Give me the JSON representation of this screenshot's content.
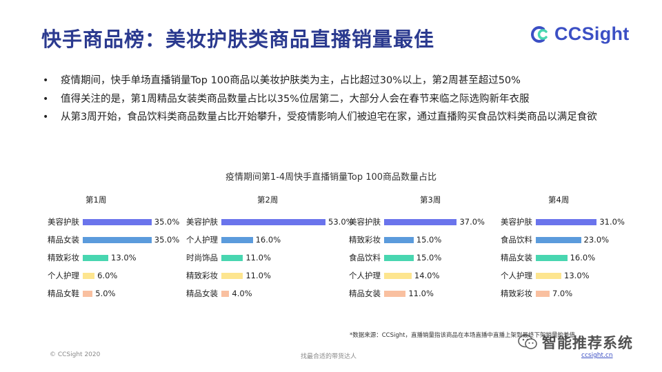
{
  "title": "快手商品榜：美妆护肤类商品直播销量最佳",
  "logo": {
    "text": "CCSight"
  },
  "bullets": [
    "疫情期间，快手单场直播销量Top 100商品以美妆护肤类为主，占比超过30%以上，第2周甚至超过50%",
    "值得关注的是，第1周精品女装类商品数量占比以35%位居第二，大部分人会在春节来临之际选购新年衣服",
    "从第3周开始，食品饮料类商品数量占比开始攀升，受疫情影响人们被迫宅在家，通过直播购买食品饮料类商品以满足食欲"
  ],
  "bullet_symbol": "•",
  "chart_data": {
    "type": "bar",
    "title": "疫情期间第1-4周快手直播销量Top 100商品数量占比",
    "orientation": "horizontal",
    "rank_colors": [
      "#6a74ec",
      "#5b9bdc",
      "#48d6b0",
      "#fde58f",
      "#f9c0a0"
    ],
    "panels": [
      {
        "name": "第1周",
        "categories": [
          "美容护肤",
          "精品女装",
          "精致彩妆",
          "个人护理",
          "精品女鞋"
        ],
        "values": [
          35.0,
          35.0,
          13.0,
          6.0,
          5.0
        ]
      },
      {
        "name": "第2周",
        "categories": [
          "美容护肤",
          "个人护理",
          "时尚饰品",
          "精致彩妆",
          "精品女装"
        ],
        "values": [
          53.0,
          16.0,
          11.0,
          11.0,
          4.0
        ]
      },
      {
        "name": "第3周",
        "categories": [
          "美容护肤",
          "精致彩妆",
          "食品饮料",
          "个人护理",
          "精品女装"
        ],
        "values": [
          37.0,
          15.0,
          15.0,
          14.0,
          11.0
        ]
      },
      {
        "name": "第4周",
        "categories": [
          "美容护肤",
          "食品饮料",
          "精品女装",
          "个人护理",
          "精致彩妆"
        ],
        "values": [
          31.0,
          23.0,
          16.0,
          13.0,
          7.0
        ]
      }
    ]
  },
  "source_note": "*数据来源：CCSight，直播销量指该商品在本场直播中直播上架到最终下架销量的差值",
  "footer": {
    "copyright": "© CCSight 2020",
    "slogan": "找最合适的带货达人",
    "link": "ccsight.cn"
  },
  "watermark": {
    "text": "智能推荐系统"
  }
}
